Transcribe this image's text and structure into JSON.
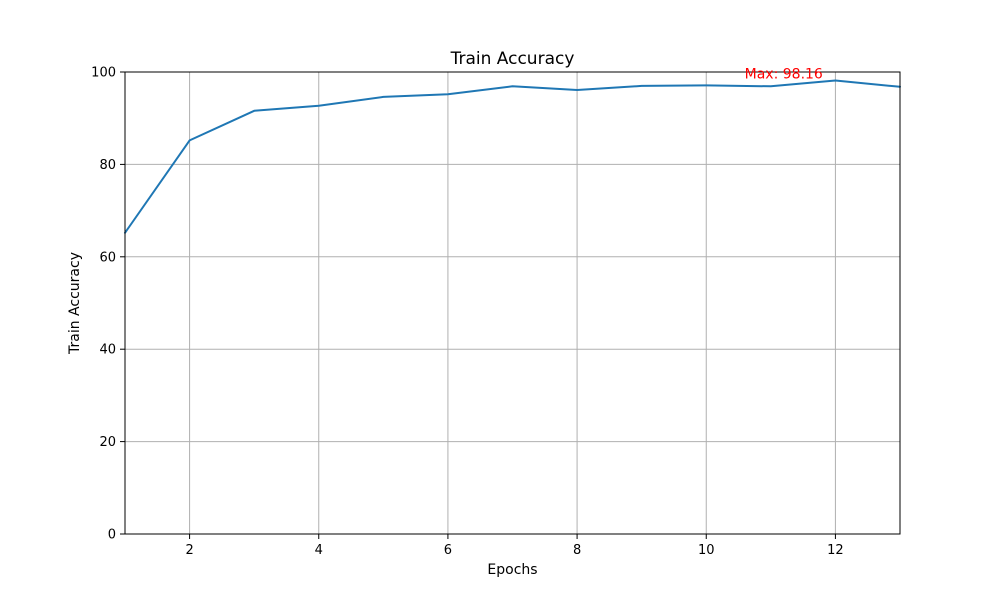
{
  "chart_data": {
    "type": "line",
    "title": "Train Accuracy",
    "xlabel": "Epochs",
    "ylabel": "Train Accuracy",
    "xlim": [
      1,
      13
    ],
    "ylim": [
      0,
      100
    ],
    "x_ticks": [
      2,
      4,
      6,
      8,
      10,
      12
    ],
    "y_ticks": [
      0,
      20,
      40,
      60,
      80,
      100
    ],
    "grid": true,
    "series": [
      {
        "x": [
          1,
          2,
          3,
          4,
          5,
          6,
          7,
          8,
          9,
          10,
          11,
          12,
          13
        ],
        "values": [
          65.2,
          85.2,
          91.6,
          92.7,
          94.6,
          95.2,
          96.9,
          96.1,
          97.0,
          97.1,
          96.9,
          98.16,
          96.8
        ],
        "color": "#1f77b4"
      }
    ],
    "annotations": [
      {
        "text": "Max: 98.16",
        "x": 11.2,
        "y": 98.16,
        "color": "#ff0000"
      }
    ]
  }
}
